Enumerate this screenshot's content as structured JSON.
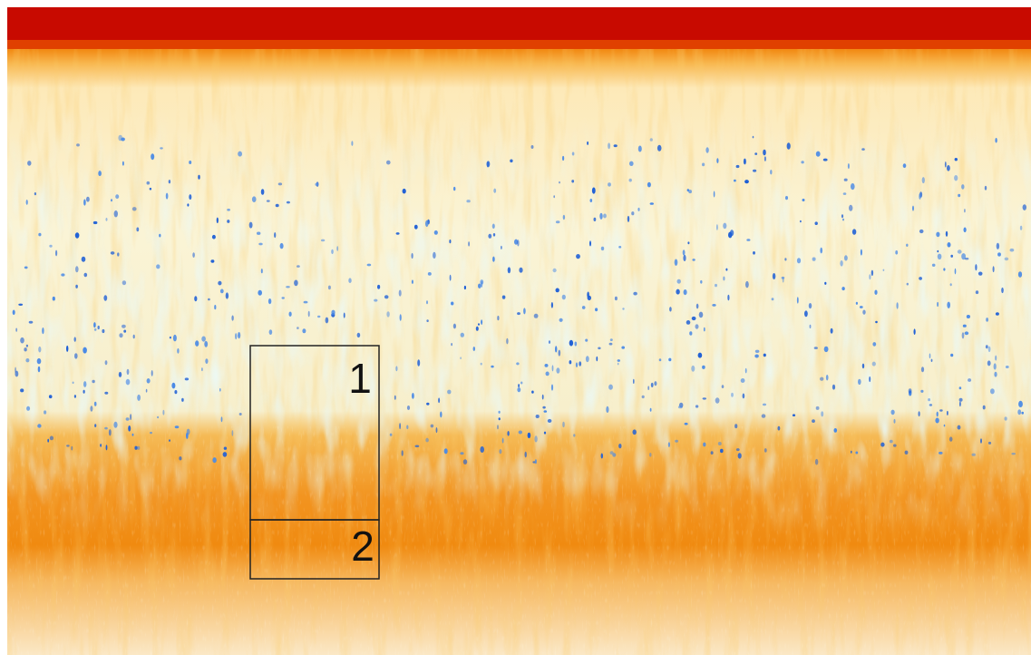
{
  "regions": [
    {
      "label": "1"
    },
    {
      "label": "2"
    }
  ]
}
